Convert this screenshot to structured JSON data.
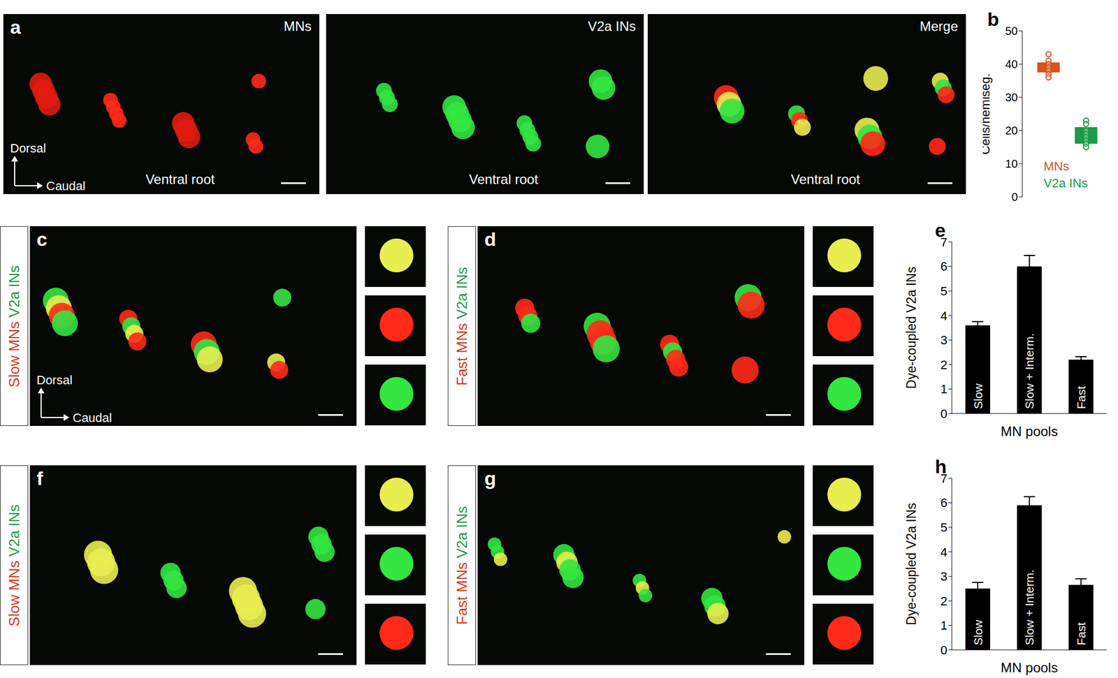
{
  "images": [
    {
      "letter": "a",
      "label": "MNs",
      "bottom_label": "Ventral root",
      "axes": [
        "Dorsal",
        "Caudal"
      ]
    },
    {
      "label": "V2a INs",
      "bottom_label": "Ventral root"
    },
    {
      "label": "Merge",
      "bottom_label": "Ventral root"
    },
    {
      "letter": "c",
      "side_label": [
        "Slow MNs",
        "V2a INs"
      ],
      "axes": [
        "Dorsal",
        "Caudal"
      ]
    },
    {
      "letter": "d",
      "side_label": [
        "Fast MNs",
        "V2a INs"
      ]
    },
    {
      "letter": "f",
      "side_label": [
        "Slow MNs",
        "V2a INs"
      ]
    },
    {
      "letter": "g",
      "side_label": [
        "Fast MNs",
        "V2a INs"
      ]
    }
  ],
  "chart_data": [
    {
      "letter": "b",
      "type": "box",
      "y_label": "Cells/hemiseg.",
      "ylim": [
        0,
        50
      ],
      "yticks": [
        0,
        10,
        20,
        30,
        40,
        50
      ],
      "tick_labels": "y",
      "series": [
        {
          "name": "MNs",
          "color": "#d4541c",
          "range": [
            37.5,
            40.5
          ],
          "values": [
            43,
            41,
            40,
            39,
            38,
            37,
            36
          ]
        },
        {
          "name": "V2a INs",
          "color": "#1b9a48",
          "range": [
            16,
            21
          ],
          "values": [
            23,
            22,
            20,
            19,
            18,
            17,
            16,
            15
          ]
        }
      ]
    },
    {
      "letter": "e",
      "type": "bar",
      "categories": [
        "Slow",
        "Slow + Interm.",
        "Fast"
      ],
      "values": [
        3.6,
        6.0,
        2.2
      ],
      "errors": [
        0.15,
        0.45,
        0.12
      ],
      "color": "#000000",
      "x_label": "MN pools",
      "y_label": "Dye-coupled V2a INs",
      "ylim": [
        0,
        7
      ],
      "yticks": [
        0,
        1,
        2,
        3,
        4,
        5,
        6,
        7
      ],
      "tick_labels": "y"
    },
    {
      "letter": "h",
      "type": "bar",
      "categories": [
        "Slow",
        "Slow + Interm.",
        "Fast"
      ],
      "values": [
        2.5,
        5.9,
        2.65
      ],
      "errors": [
        0.25,
        0.35,
        0.25
      ],
      "color": "#000000",
      "x_label": "MN pools",
      "y_label": "Dye-coupled V2a INs",
      "ylim": [
        0,
        7
      ],
      "yticks": [
        0,
        1,
        2,
        3,
        4,
        5,
        6,
        7
      ],
      "tick_labels": "y"
    }
  ]
}
